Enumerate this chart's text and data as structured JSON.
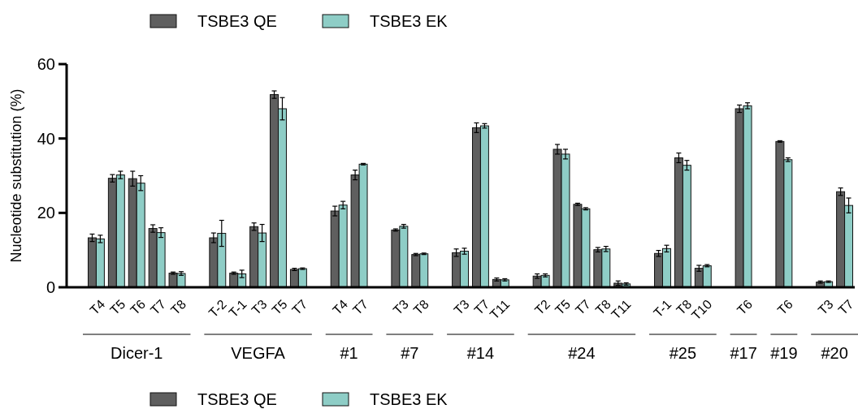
{
  "chart_data": {
    "type": "bar",
    "ylabel": "Nucleotide substitution (%)",
    "ylim": [
      0,
      60
    ],
    "yticks": [
      0,
      20,
      40,
      60
    ],
    "legend": "top",
    "grid": false,
    "categories": [
      "T4",
      "T5",
      "T6",
      "T7",
      "T8",
      null,
      "T-2",
      "T-1",
      "T3",
      "T5",
      "T7",
      null,
      "T4",
      "T7",
      null,
      "T3",
      "T8",
      null,
      "T3",
      "T7",
      "T11",
      null,
      "T2",
      "T5",
      "T7",
      "T8",
      "T11",
      null,
      "T-1",
      "T8",
      "T10",
      null,
      "T6",
      null,
      "T6",
      null,
      "T3",
      "T7"
    ],
    "annotations": [
      "Dicer-1",
      "VEGFA",
      "#1",
      "#7",
      "#14",
      "#24",
      "#25",
      "#17",
      "#19",
      "#20"
    ],
    "series": [
      {
        "name": "TSBE3 QE",
        "color": "#5f5f5f",
        "values": [
          13.3,
          29.3,
          29.2,
          15.8,
          3.8,
          null,
          13.3,
          3.8,
          16.3,
          51.8,
          4.8,
          null,
          20.5,
          30.2,
          null,
          15.4,
          8.8,
          null,
          9.3,
          42.9,
          2.1,
          null,
          3.0,
          37.1,
          22.3,
          10.1,
          1.1,
          null,
          9.1,
          34.8,
          5.1,
          null,
          48.0,
          null,
          39.2,
          null,
          1.4,
          25.7
        ],
        "errors": [
          1,
          1,
          2,
          1,
          0.3,
          null,
          1.3,
          0.3,
          1,
          1,
          0.3,
          null,
          1.3,
          1.3,
          null,
          0.3,
          0.3,
          null,
          1,
          1.3,
          0.4,
          null,
          0.6,
          1.3,
          0.3,
          0.6,
          0.6,
          null,
          0.8,
          1.3,
          0.8,
          null,
          1,
          null,
          0.2,
          null,
          0.3,
          1
        ]
      },
      {
        "name": "TSBE3 EK",
        "color": "#8ecdc6",
        "values": [
          13.0,
          30.2,
          28.0,
          14.7,
          3.7,
          null,
          14.5,
          3.6,
          14.6,
          48.0,
          5.0,
          null,
          22.1,
          33.1,
          null,
          16.4,
          9.0,
          null,
          9.7,
          43.4,
          2.0,
          null,
          3.2,
          35.8,
          21.1,
          10.3,
          0.9,
          null,
          10.4,
          32.8,
          5.8,
          null,
          48.8,
          null,
          34.3,
          null,
          1.5,
          22.0
        ],
        "errors": [
          1,
          1,
          2,
          1.3,
          0.5,
          null,
          3.5,
          1,
          2.3,
          3,
          0.2,
          null,
          1,
          0.2,
          null,
          0.5,
          0.2,
          null,
          0.8,
          0.6,
          0.3,
          null,
          0.4,
          1.3,
          0.3,
          0.7,
          0.3,
          null,
          0.9,
          1.3,
          0.3,
          null,
          0.8,
          null,
          0.5,
          null,
          0.2,
          2
        ]
      }
    ]
  }
}
